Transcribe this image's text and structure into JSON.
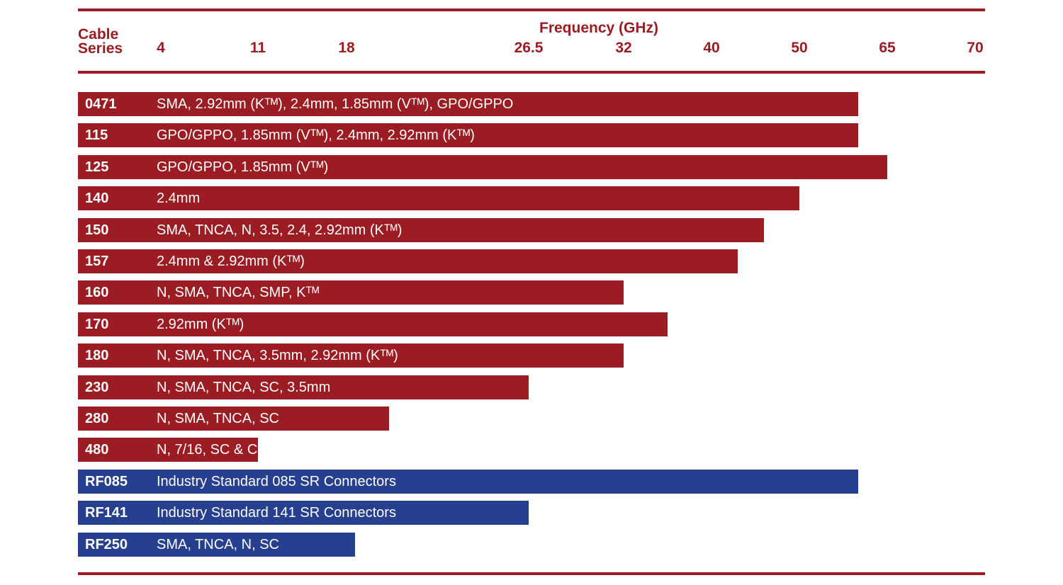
{
  "chart_data": {
    "type": "bar",
    "orientation": "horizontal",
    "header": {
      "cable_label_line1": "Cable",
      "cable_label_line2": "Series",
      "axis_title": "Frequency (GHz)"
    },
    "ticks": [
      "4",
      "11",
      "18",
      "26.5",
      "32",
      "40",
      "50",
      "65",
      "70"
    ],
    "colors": {
      "red": "#9b1c22",
      "blue": "#263f8f",
      "rule": "#9b1c22"
    },
    "bars": [
      {
        "series": "0471",
        "connectors": "SMA, 2.92mm (Kᵀᴹ), 2.4mm, 1.85mm (Vᵀᴹ), GPO/GPPO",
        "max_frequency_ghz": 60,
        "color": "red"
      },
      {
        "series": "115",
        "connectors": "GPO/GPPO, 1.85mm (Vᵀᴹ), 2.4mm, 2.92mm (Kᵀᴹ)",
        "max_frequency_ghz": 60,
        "color": "red"
      },
      {
        "series": "125",
        "connectors": "GPO/GPPO, 1.85mm (Vᵀᴹ)",
        "max_frequency_ghz": 65,
        "color": "red"
      },
      {
        "series": "140",
        "connectors": "2.4mm",
        "max_frequency_ghz": 50,
        "color": "red"
      },
      {
        "series": "150",
        "connectors": "SMA, TNCA, N, 3.5, 2.4, 2.92mm (Kᵀᴹ)",
        "max_frequency_ghz": 46,
        "color": "red"
      },
      {
        "series": "157",
        "connectors": "2.4mm & 2.92mm (Kᵀᴹ)",
        "max_frequency_ghz": 43,
        "color": "red"
      },
      {
        "series": "160",
        "connectors": "N, SMA, TNCA, SMP, Kᵀᴹ",
        "max_frequency_ghz": 32,
        "color": "red"
      },
      {
        "series": "170",
        "connectors": "2.92mm (Kᵀᴹ)",
        "max_frequency_ghz": 36,
        "color": "red"
      },
      {
        "series": "180",
        "connectors": "N, SMA, TNCA, 3.5mm, 2.92mm (Kᵀᴹ)",
        "max_frequency_ghz": 32,
        "color": "red"
      },
      {
        "series": "230",
        "connectors": "N, SMA, TNCA, SC, 3.5mm",
        "max_frequency_ghz": 26.5,
        "color": "red"
      },
      {
        "series": "280",
        "connectors": "N, SMA, TNCA, SC",
        "max_frequency_ghz": 20,
        "color": "red"
      },
      {
        "series": "480",
        "connectors": "N, 7/16, SC & C",
        "max_frequency_ghz": 11,
        "color": "red"
      },
      {
        "series": "RF085",
        "connectors": "Industry Standard 085 SR Connectors",
        "max_frequency_ghz": 60,
        "color": "blue"
      },
      {
        "series": "RF141",
        "connectors": "Industry Standard 141 SR Connectors",
        "max_frequency_ghz": 26.5,
        "color": "blue"
      },
      {
        "series": "RF250",
        "connectors": "SMA, TNCA, N, SC",
        "max_frequency_ghz": 18.4,
        "color": "blue"
      }
    ]
  }
}
